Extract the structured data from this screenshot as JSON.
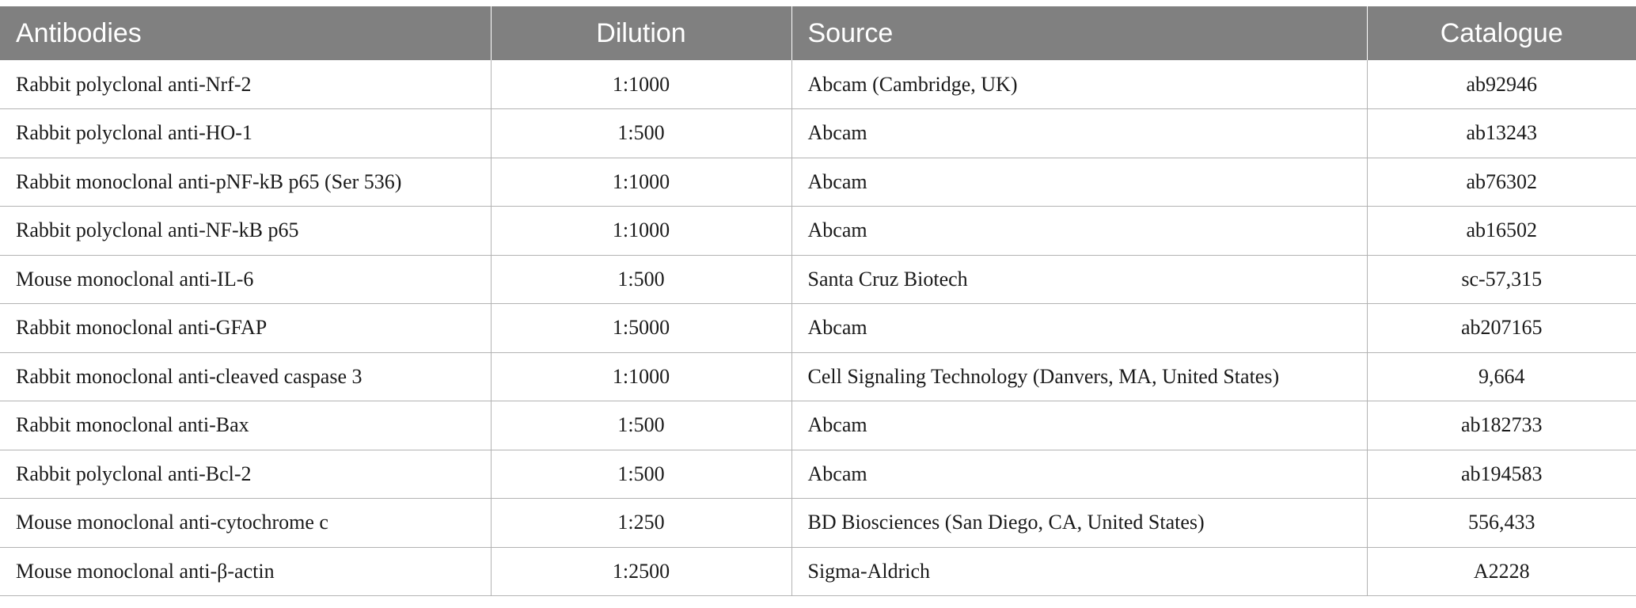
{
  "table": {
    "headers": [
      "Antibodies",
      "Dilution",
      "Source",
      "Catalogue"
    ],
    "rows": [
      [
        "Rabbit polyclonal anti-Nrf-2",
        "1:1000",
        "Abcam (Cambridge, UK)",
        "ab92946"
      ],
      [
        "Rabbit polyclonal anti-HO-1",
        "1:500",
        "Abcam",
        "ab13243"
      ],
      [
        "Rabbit monoclonal anti-pNF-kB p65 (Ser 536)",
        "1:1000",
        "Abcam",
        "ab76302"
      ],
      [
        "Rabbit polyclonal anti-NF-kB p65",
        "1:1000",
        "Abcam",
        "ab16502"
      ],
      [
        "Mouse monoclonal anti-IL-6",
        "1:500",
        "Santa Cruz Biotech",
        "sc-57,315"
      ],
      [
        "Rabbit monoclonal anti-GFAP",
        "1:5000",
        "Abcam",
        "ab207165"
      ],
      [
        "Rabbit monoclonal anti-cleaved caspase 3",
        "1:1000",
        "Cell Signaling Technology (Danvers, MA, United States)",
        "9,664"
      ],
      [
        "Rabbit monoclonal anti-Bax",
        "1:500",
        "Abcam",
        "ab182733"
      ],
      [
        "Rabbit polyclonal anti-Bcl-2",
        "1:500",
        "Abcam",
        "ab194583"
      ],
      [
        "Mouse monoclonal anti-cytochrome c",
        "1:250",
        "BD Biosciences (San Diego, CA, United States)",
        "556,433"
      ],
      [
        "Mouse monoclonal anti-β-actin",
        "1:2500",
        "Sigma-Aldrich",
        "A2228"
      ]
    ]
  },
  "colors": {
    "header_bg": "#808080",
    "header_text": "#ffffff",
    "grid": "#b3b3b3"
  }
}
